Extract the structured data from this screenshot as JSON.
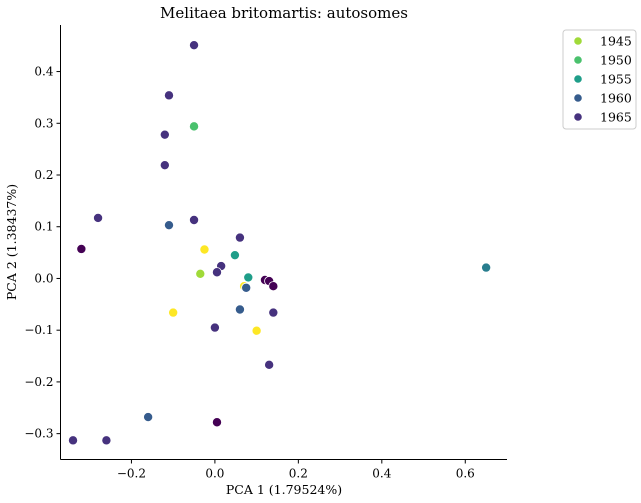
{
  "chart_data": {
    "type": "scatter",
    "title": "Melitaea britomartis: autosomes",
    "xlabel": "PCA 1 (1.79524%)",
    "ylabel": "PCA 2 (1.38437%)",
    "xlim": [
      -0.37,
      0.7
    ],
    "ylim": [
      -0.35,
      0.49
    ],
    "xticks": [
      -0.2,
      0.0,
      0.2,
      0.4,
      0.6
    ],
    "xtick_labels": [
      "−0.2",
      "0.0",
      "0.2",
      "0.4",
      "0.6"
    ],
    "yticks": [
      -0.3,
      -0.2,
      -0.1,
      0.0,
      0.1,
      0.2,
      0.3,
      0.4
    ],
    "ytick_labels": [
      "−0.3",
      "−0.2",
      "−0.1",
      "0.0",
      "0.1",
      "0.2",
      "0.3",
      "0.4"
    ],
    "grid": false,
    "legend_position": "upper right outside",
    "legend": [
      {
        "name": "1945",
        "color": "#a0da39"
      },
      {
        "name": "1950",
        "color": "#4ac16d"
      },
      {
        "name": "1955",
        "color": "#1f9e89"
      },
      {
        "name": "1960",
        "color": "#365c8d"
      },
      {
        "name": "1965",
        "color": "#46327e"
      }
    ],
    "points": [
      {
        "x": -0.05,
        "y": 0.451,
        "color": "#46327e"
      },
      {
        "x": -0.11,
        "y": 0.354,
        "color": "#46327e"
      },
      {
        "x": -0.12,
        "y": 0.278,
        "color": "#46327e"
      },
      {
        "x": -0.12,
        "y": 0.219,
        "color": "#46327e"
      },
      {
        "x": -0.05,
        "y": 0.294,
        "color": "#4ac16d"
      },
      {
        "x": -0.28,
        "y": 0.117,
        "color": "#46327e"
      },
      {
        "x": -0.05,
        "y": 0.113,
        "color": "#46327e"
      },
      {
        "x": -0.11,
        "y": 0.103,
        "color": "#365c8d"
      },
      {
        "x": -0.32,
        "y": 0.057,
        "color": "#440154"
      },
      {
        "x": 0.06,
        "y": 0.079,
        "color": "#46327e"
      },
      {
        "x": -0.025,
        "y": 0.056,
        "color": "#fde725"
      },
      {
        "x": 0.048,
        "y": 0.045,
        "color": "#1f9e89"
      },
      {
        "x": 0.015,
        "y": 0.024,
        "color": "#46327e"
      },
      {
        "x": -0.035,
        "y": 0.009,
        "color": "#a0da39"
      },
      {
        "x": 0.005,
        "y": 0.012,
        "color": "#46327e"
      },
      {
        "x": 0.08,
        "y": 0.002,
        "color": "#1f9e89"
      },
      {
        "x": 0.12,
        "y": -0.003,
        "color": "#440154"
      },
      {
        "x": 0.13,
        "y": -0.005,
        "color": "#440154"
      },
      {
        "x": 0.07,
        "y": -0.015,
        "color": "#fde725"
      },
      {
        "x": 0.14,
        "y": -0.015,
        "color": "#440154"
      },
      {
        "x": 0.075,
        "y": -0.018,
        "color": "#365c8d"
      },
      {
        "x": 0.65,
        "y": 0.021,
        "color": "#287d8e"
      },
      {
        "x": 0.06,
        "y": -0.06,
        "color": "#365c8d"
      },
      {
        "x": -0.1,
        "y": -0.066,
        "color": "#fde725"
      },
      {
        "x": 0.14,
        "y": -0.066,
        "color": "#46327e"
      },
      {
        "x": 0.0,
        "y": -0.095,
        "color": "#46327e"
      },
      {
        "x": 0.1,
        "y": -0.101,
        "color": "#fde725"
      },
      {
        "x": 0.13,
        "y": -0.167,
        "color": "#46327e"
      },
      {
        "x": -0.16,
        "y": -0.268,
        "color": "#365c8d"
      },
      {
        "x": 0.005,
        "y": -0.278,
        "color": "#440154"
      },
      {
        "x": -0.34,
        "y": -0.313,
        "color": "#46327e"
      },
      {
        "x": -0.26,
        "y": -0.313,
        "color": "#46327e"
      }
    ]
  }
}
